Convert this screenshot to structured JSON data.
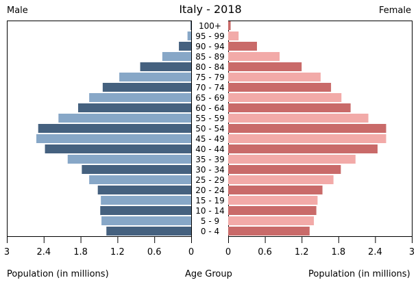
{
  "header": {
    "title": "Italy - 2018",
    "left_label": "Male",
    "right_label": "Female"
  },
  "footer": {
    "left_axis_label": "Population (in millions)",
    "center_label": "Age Group",
    "right_axis_label": "Population (in millions)"
  },
  "chart_data": {
    "type": "bar",
    "title": "Italy - 2018",
    "categories": [
      "0 - 4",
      "5 - 9",
      "10 - 14",
      "15 - 19",
      "20 - 24",
      "25 - 29",
      "30 - 34",
      "35 - 39",
      "40 - 44",
      "45 - 49",
      "50 - 54",
      "55 - 59",
      "60 - 64",
      "65 - 69",
      "70 - 74",
      "75 - 79",
      "80 - 84",
      "85 - 89",
      "90 - 94",
      "95 - 99",
      "100+"
    ],
    "series": [
      {
        "name": "Male",
        "values": [
          1.38,
          1.46,
          1.48,
          1.47,
          1.52,
          1.66,
          1.78,
          2.01,
          2.38,
          2.52,
          2.49,
          2.16,
          1.84,
          1.66,
          1.44,
          1.17,
          0.83,
          0.47,
          0.2,
          0.06,
          0.01
        ]
      },
      {
        "name": "Female",
        "values": [
          1.33,
          1.4,
          1.44,
          1.46,
          1.54,
          1.72,
          1.84,
          2.08,
          2.44,
          2.58,
          2.58,
          2.29,
          2.0,
          1.85,
          1.68,
          1.51,
          1.2,
          0.84,
          0.47,
          0.17,
          0.04
        ]
      }
    ],
    "xlim": [
      0,
      3
    ],
    "ticks": [
      "3",
      "2.4",
      "1.8",
      "1.2",
      "0.6",
      "0"
    ],
    "ticks_right": [
      "0",
      "0.6",
      "1.2",
      "1.8",
      "2.4",
      "3"
    ],
    "colors": {
      "male_dark": "#45617f",
      "male_light": "#87a7c7",
      "female_dark": "#c96a69",
      "female_light": "#f2aaa8"
    },
    "legend": "none",
    "grid": false
  }
}
